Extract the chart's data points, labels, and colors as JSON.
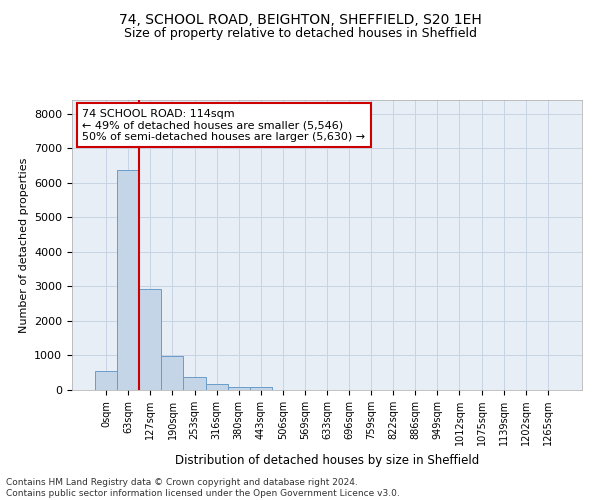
{
  "title": "74, SCHOOL ROAD, BEIGHTON, SHEFFIELD, S20 1EH",
  "subtitle": "Size of property relative to detached houses in Sheffield",
  "xlabel": "Distribution of detached houses by size in Sheffield",
  "ylabel": "Number of detached properties",
  "footer_line1": "Contains HM Land Registry data © Crown copyright and database right 2024.",
  "footer_line2": "Contains public sector information licensed under the Open Government Licence v3.0.",
  "bar_labels": [
    "0sqm",
    "63sqm",
    "127sqm",
    "190sqm",
    "253sqm",
    "316sqm",
    "380sqm",
    "443sqm",
    "506sqm",
    "569sqm",
    "633sqm",
    "696sqm",
    "759sqm",
    "822sqm",
    "886sqm",
    "949sqm",
    "1012sqm",
    "1075sqm",
    "1139sqm",
    "1202sqm",
    "1265sqm"
  ],
  "bar_values": [
    560,
    6380,
    2920,
    980,
    370,
    160,
    100,
    75,
    0,
    0,
    0,
    0,
    0,
    0,
    0,
    0,
    0,
    0,
    0,
    0,
    0
  ],
  "bar_color": "#c5d5e8",
  "bar_edge_color": "#6a9cc8",
  "grid_color": "#c8d4e4",
  "bg_color": "#e8eef6",
  "annotation_text_line1": "74 SCHOOL ROAD: 114sqm",
  "annotation_text_line2": "← 49% of detached houses are smaller (5,546)",
  "annotation_text_line3": "50% of semi-detached houses are larger (5,630) →",
  "annotation_box_color": "#cc0000",
  "red_line_x": 1.5,
  "ylim": [
    0,
    8400
  ],
  "yticks": [
    0,
    1000,
    2000,
    3000,
    4000,
    5000,
    6000,
    7000,
    8000
  ],
  "title_fontsize": 10,
  "subtitle_fontsize": 9,
  "tick_fontsize": 7,
  "ylabel_fontsize": 8,
  "xlabel_fontsize": 8.5,
  "annotation_fontsize": 8,
  "footer_fontsize": 6.5
}
